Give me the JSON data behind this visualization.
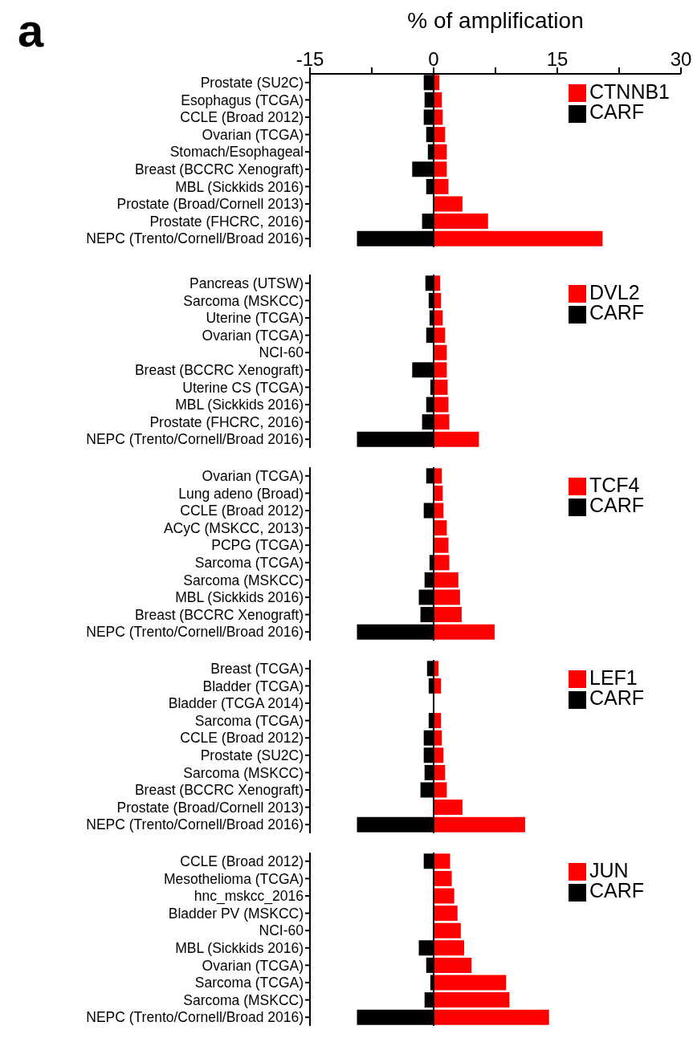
{
  "chart_data": [
    {
      "type": "bar",
      "orientation": "horizontal",
      "stacked": true,
      "xlabel": "% of amplification",
      "annotations": [
        "a"
      ],
      "legend": "top right",
      "xlim": [
        -15,
        30
      ],
      "xticks": [
        -15,
        {
          "value": -7.5,
          "label": null
        },
        0,
        {
          "value": 7.5,
          "label": null
        },
        15,
        {
          "value": 22.5,
          "label": null
        },
        30
      ],
      "ref_lines": [
        {
          "axis": "x",
          "value": 0,
          "color": "#000000"
        }
      ],
      "categories": [
        "Prostate (SU2C)",
        "Esophagus (TCGA)",
        "CCLE (Broad 2012)",
        "Ovarian (TCGA)",
        "Stomach/Esophageal",
        "Breast (BCCRC Xenograft)",
        "MBL (Sickkids 2016)",
        "Prostate (Broad/Cornell 2013)",
        "Prostate (FHCRC, 2016)",
        "NEPC (Trento/Cornell/Broad 2016)"
      ],
      "series": [
        {
          "name": "CTNNB1",
          "color": "#ff0000",
          "values": [
            0.7,
            1.0,
            1.1,
            1.4,
            1.6,
            1.6,
            1.8,
            3.5,
            6.6,
            20.5
          ]
        },
        {
          "name": "CARF",
          "color": "#000000",
          "values": [
            -1.2,
            -1.1,
            -1.2,
            -0.9,
            -0.7,
            -2.6,
            -0.9,
            null,
            -1.4,
            -9.3
          ]
        }
      ]
    },
    {
      "type": "bar",
      "orientation": "horizontal",
      "stacked": true,
      "legend": "top right",
      "tick_labels": "y",
      "xlim": [
        -15,
        30
      ],
      "ref_lines": [
        {
          "axis": "x",
          "value": 0,
          "color": "#000000"
        }
      ],
      "categories": [
        "Pancreas (UTSW)",
        "Sarcoma (MSKCC)",
        "Uterine (TCGA)",
        "Ovarian (TCGA)",
        "NCI-60",
        "Breast (BCCRC Xenograft)",
        "Uterine CS (TCGA)",
        "MBL (Sickkids 2016)",
        "Prostate (FHCRC, 2016)",
        "NEPC (Trento/Cornell/Broad 2016)"
      ],
      "series": [
        {
          "name": "DVL2",
          "color": "#ff0000",
          "values": [
            0.8,
            0.9,
            1.1,
            1.4,
            1.6,
            1.6,
            1.7,
            1.8,
            1.9,
            5.5
          ]
        },
        {
          "name": "CARF",
          "color": "#000000",
          "values": [
            -1.0,
            -0.6,
            -0.5,
            -0.9,
            null,
            -2.6,
            -0.4,
            -0.9,
            -1.4,
            -9.3
          ]
        }
      ]
    },
    {
      "type": "bar",
      "orientation": "horizontal",
      "stacked": true,
      "legend": "top right",
      "tick_labels": "y",
      "xlim": [
        -15,
        30
      ],
      "ref_lines": [
        {
          "axis": "x",
          "value": 0,
          "color": "#000000"
        }
      ],
      "categories": [
        "Ovarian (TCGA)",
        "Lung adeno (Broad)",
        "CCLE (Broad 2012)",
        "ACyC (MSKCC, 2013)",
        "PCPG (TCGA)",
        "Sarcoma (TCGA)",
        "Sarcoma (MSKCC)",
        "MBL (Sickkids 2016)",
        "Breast (BCCRC Xenograft)",
        "NEPC (Trento/Cornell/Broad 2016)"
      ],
      "series": [
        {
          "name": "TCF4",
          "color": "#ff0000",
          "values": [
            1.0,
            1.1,
            1.2,
            1.6,
            1.8,
            1.9,
            3.0,
            3.2,
            3.4,
            7.4
          ]
        },
        {
          "name": "CARF",
          "color": "#000000",
          "values": [
            -0.9,
            null,
            -1.2,
            null,
            null,
            -0.5,
            -1.1,
            -1.8,
            -1.6,
            -9.3
          ]
        }
      ]
    },
    {
      "type": "bar",
      "orientation": "horizontal",
      "stacked": true,
      "legend": "top right",
      "tick_labels": "y",
      "xlim": [
        -15,
        30
      ],
      "ref_lines": [
        {
          "axis": "x",
          "value": 0,
          "color": "#000000"
        }
      ],
      "categories": [
        "Breast (TCGA)",
        "Bladder (TCGA)",
        "Bladder (TCGA 2014)",
        "Sarcoma (TCGA)",
        "CCLE (Broad 2012)",
        "Prostate (SU2C)",
        "Sarcoma (MSKCC)",
        "Breast (BCCRC Xenograft)",
        "Prostate (Broad/Cornell 2013)",
        "NEPC (Trento/Cornell/Broad 2016)"
      ],
      "series": [
        {
          "name": "LEF1",
          "color": "#ff0000",
          "values": [
            0.6,
            0.9,
            null,
            0.9,
            1.0,
            1.2,
            1.4,
            1.6,
            3.5,
            11.1
          ]
        },
        {
          "name": "CARF",
          "color": "#000000",
          "values": [
            -0.8,
            -0.6,
            null,
            -0.6,
            -1.2,
            -1.2,
            -1.1,
            -1.6,
            null,
            -9.3
          ]
        }
      ]
    },
    {
      "type": "bar",
      "orientation": "horizontal",
      "stacked": true,
      "legend": "top right",
      "tick_labels": "y",
      "xlim": [
        -15,
        30
      ],
      "ref_lines": [
        {
          "axis": "x",
          "value": 0,
          "color": "#000000"
        }
      ],
      "categories": [
        "CCLE (Broad 2012)",
        "Mesothelioma (TCGA)",
        "hnc_mskcc_2016",
        "Bladder PV (MSKCC)",
        "NCI-60",
        "MBL (Sickkids 2016)",
        "Ovarian (TCGA)",
        "Sarcoma (TCGA)",
        "Sarcoma (MSKCC)",
        "NEPC (Trento/Cornell/Broad 2016)"
      ],
      "series": [
        {
          "name": "JUN",
          "color": "#ff0000",
          "values": [
            2.0,
            2.2,
            2.5,
            2.9,
            3.3,
            3.7,
            4.6,
            8.8,
            9.2,
            14.0
          ]
        },
        {
          "name": "CARF",
          "color": "#000000",
          "values": [
            -1.2,
            null,
            null,
            null,
            null,
            -1.8,
            -0.9,
            -0.4,
            -1.1,
            -9.3
          ]
        }
      ]
    }
  ]
}
